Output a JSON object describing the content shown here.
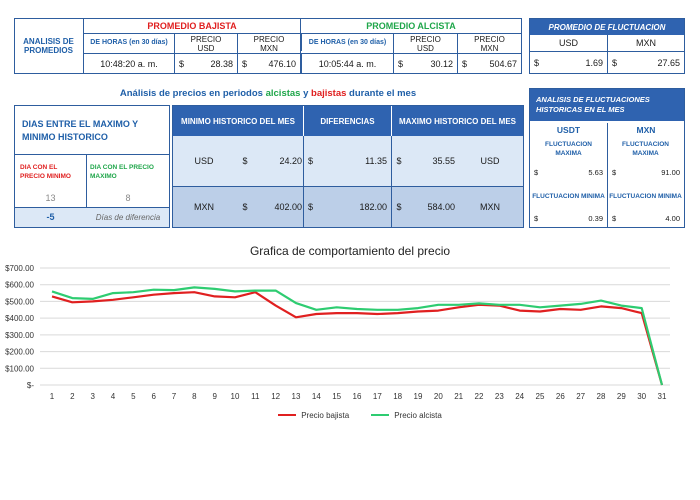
{
  "top": {
    "analisis_label": "ANALISIS DE PROMEDIOS",
    "bajista": {
      "title": "PROMEDIO BAJISTA",
      "horas_label": "DE HORAS (en 30 días)",
      "time": "10:48:20 a. m.",
      "precio_usd_label": "PRECIO USD",
      "precio_mxn_label": "PRECIO MXN",
      "usd_symbol": "$",
      "usd_value": "28.38",
      "mxn_symbol": "$",
      "mxn_value": "476.10"
    },
    "alcista": {
      "title": "PROMEDIO ALCISTA",
      "horas_label": "DE HORAS (en 30 días)",
      "time": "10:05:44 a. m.",
      "precio_usd_label": "PRECIO USD",
      "precio_mxn_label": "PRECIO MXN",
      "usd_symbol": "$",
      "usd_value": "30.12",
      "mxn_symbol": "$",
      "mxn_value": "504.67"
    },
    "fluctuacion": {
      "title": "PROMEDIO DE FLUCTUACION",
      "usd_label": "USD",
      "mxn_label": "MXN",
      "usd_symbol": "$",
      "usd_value": "1.69",
      "mxn_symbol": "$",
      "mxn_value": "27.65"
    }
  },
  "middle": {
    "subtitle_part1": "Análisis de precios en periodos ",
    "subtitle_alcistas": "alcistas",
    "subtitle_y": " y ",
    "subtitle_bajistas": "bajistas",
    "subtitle_part2": " durante el mes",
    "dias_header": "DIAS ENTRE EL MAXIMO Y MINIMO HISTORICO",
    "dia_minimo_label": "DIA CON EL PRECIO MINIMO",
    "dia_maximo_label": "DIA CON EL PRECIO MAXIMO",
    "dia_minimo": "13",
    "dia_maximo": "8",
    "dias_diff": "-5",
    "dias_diff_label": "Días de diferencia",
    "col_minimo": "MINIMO HISTORICO DEL MES",
    "col_diferencias": "DIFERENCIAS",
    "col_maximo": "MAXIMO HISTORICO DEL MES",
    "row_usd": {
      "currency": "USD",
      "min_symbol": "$",
      "min": "24.20",
      "diff_symbol": "$",
      "diff": "11.35",
      "max_symbol": "$",
      "max": "35.55",
      "currency_right": "USD"
    },
    "row_mxn": {
      "currency": "MXN",
      "min_symbol": "$",
      "min": "402.00",
      "diff_symbol": "$",
      "diff": "182.00",
      "max_symbol": "$",
      "max": "584.00",
      "currency_right": "MXN"
    }
  },
  "historic": {
    "title": "ANALISIS DE FLUCTUACIONES HISTORICAS EN EL MES",
    "usdt_label": "USDT",
    "mxn_label": "MXN",
    "max_label": "FLUCTUACION MAXIMA",
    "min_label": "FLUCTUACION MINIMA",
    "usdt_max_symbol": "$",
    "usdt_max": "5.63",
    "mxn_max_symbol": "$",
    "mxn_max": "91.00",
    "usdt_min_symbol": "$",
    "usdt_min": "0.39",
    "mxn_min_symbol": "$",
    "mxn_min": "4.00"
  },
  "colors": {
    "bajista": "#e02020",
    "alcista": "#2ecc71",
    "accent": "#2f63b0"
  },
  "chart_data": {
    "type": "line",
    "title": "Grafica de comportamiento del precio",
    "xlabel": "",
    "ylabel": "",
    "ylim": [
      0,
      700
    ],
    "ytick_labels": [
      "$-",
      "$100.00",
      "$200.00",
      "$300.00",
      "$400.00",
      "$500.00",
      "$600.00",
      "$700.00"
    ],
    "ytick_values": [
      0,
      100,
      200,
      300,
      400,
      500,
      600,
      700
    ],
    "x": [
      1,
      2,
      3,
      4,
      5,
      6,
      7,
      8,
      9,
      10,
      11,
      12,
      13,
      14,
      15,
      16,
      17,
      18,
      19,
      20,
      21,
      22,
      23,
      24,
      25,
      26,
      27,
      28,
      29,
      30,
      31
    ],
    "series": [
      {
        "name": "Precio bajista",
        "color": "#e02020",
        "values": [
          530,
          495,
          500,
          510,
          525,
          540,
          550,
          555,
          530,
          525,
          555,
          475,
          405,
          425,
          430,
          430,
          425,
          430,
          440,
          445,
          465,
          480,
          475,
          445,
          440,
          455,
          450,
          470,
          460,
          430,
          0
        ]
      },
      {
        "name": "Precio alcista",
        "color": "#2ecc71",
        "values": [
          560,
          520,
          515,
          550,
          555,
          570,
          568,
          584,
          575,
          560,
          565,
          565,
          490,
          450,
          465,
          455,
          450,
          450,
          460,
          480,
          480,
          488,
          480,
          480,
          465,
          475,
          485,
          505,
          475,
          460,
          0
        ]
      }
    ]
  }
}
